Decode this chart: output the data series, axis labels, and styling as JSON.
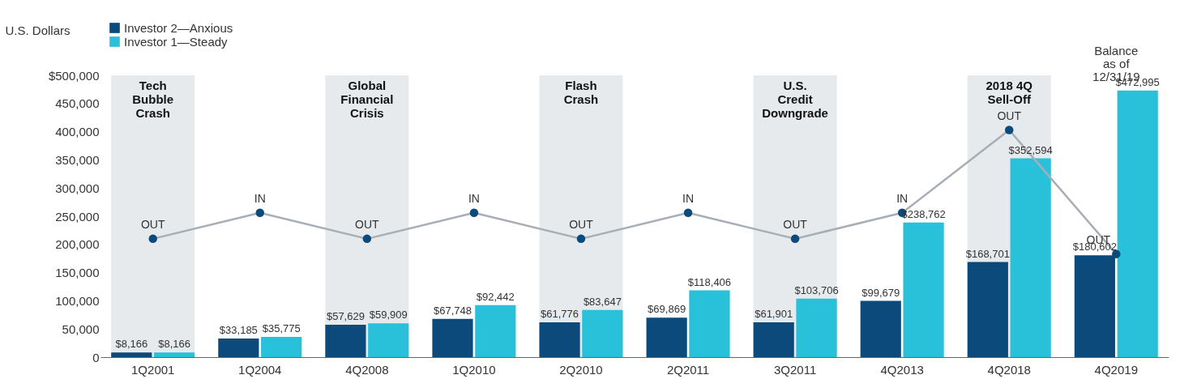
{
  "chart_data": {
    "type": "bar",
    "ylabel": "U.S. Dollars",
    "categories": [
      "1Q2001",
      "1Q2004",
      "4Q2008",
      "1Q2010",
      "2Q2010",
      "2Q2011",
      "3Q2011",
      "4Q2013",
      "4Q2018",
      "4Q2019"
    ],
    "series": [
      {
        "name": "Investor 2—Anxious",
        "color": "#0b4a7a",
        "values": [
          8166,
          33185,
          57629,
          67748,
          61776,
          69869,
          61901,
          99679,
          168701,
          180602
        ],
        "value_labels": [
          "$8,166",
          "$33,185",
          "$57,629",
          "$67,748",
          "$61,776",
          "$69,869",
          "$61,901",
          "$99,679",
          "$168,701",
          "$180,602"
        ]
      },
      {
        "name": "Investor 1—Steady",
        "color": "#29c0da",
        "values": [
          8166,
          35775,
          59909,
          92442,
          83647,
          118406,
          103706,
          238762,
          352594,
          472995
        ],
        "value_labels": [
          "$8,166",
          "$35,775",
          "$59,909",
          "$92,442",
          "$83,647",
          "$118,406",
          "$103,706",
          "$238,762",
          "$352,594",
          "$472,995"
        ]
      },
      {
        "type": "line",
        "color": "#a7aeb6",
        "marker": "circle",
        "values": [
          210000,
          256000,
          210000,
          256000,
          210000,
          256000,
          210000,
          256000,
          403000,
          183000
        ],
        "value_labels": [
          "OUT",
          "IN",
          "OUT",
          "IN",
          "OUT",
          "IN",
          "OUT",
          "IN",
          "OUT",
          "OUT"
        ]
      }
    ],
    "ylim": [
      0,
      500000
    ],
    "yticks": [
      0,
      {
        "value": 50000,
        "label": "50,000"
      },
      {
        "value": 100000,
        "label": "100,000"
      },
      {
        "value": 150000,
        "label": "150,000"
      },
      {
        "value": 200000,
        "label": "200,000"
      },
      {
        "value": 250000,
        "label": "250,000"
      },
      {
        "value": 300000,
        "label": "300,000"
      },
      {
        "value": 350000,
        "label": "350,000"
      },
      {
        "value": 400000,
        "label": "400,000"
      },
      {
        "value": 450000,
        "label": "450,000"
      },
      {
        "value": 500000,
        "label": "$500,000"
      }
    ],
    "bands": [
      {
        "axis": "x",
        "from": "1Q2001",
        "to": "1Q2001",
        "label": "Tech\nBubble\nCrash",
        "color": "#e7eaed"
      },
      {
        "axis": "x",
        "from": "4Q2008",
        "to": "4Q2008",
        "label": "Global\nFinancial\nCrisis",
        "color": "#e7eaed"
      },
      {
        "axis": "x",
        "from": "2Q2010",
        "to": "2Q2010",
        "label": "Flash\nCrash",
        "color": "#e7eaed"
      },
      {
        "axis": "x",
        "from": "3Q2011",
        "to": "3Q2011",
        "label": "U.S.\nCredit\nDowngrade",
        "color": "#e7eaed"
      },
      {
        "axis": "x",
        "from": "4Q2018",
        "to": "4Q2018",
        "label": "2018 4Q\nSell-Off",
        "color": "#e7eaed"
      }
    ],
    "annotations": [
      "Balance\nas of\n12/31/19"
    ],
    "grid": false,
    "legend": "top left"
  }
}
